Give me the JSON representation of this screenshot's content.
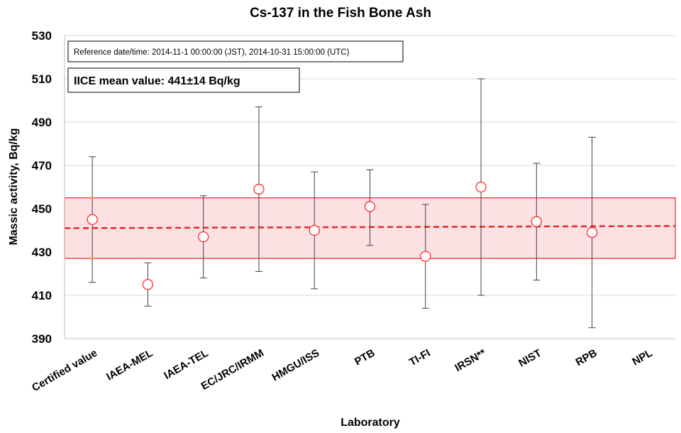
{
  "chart_data": {
    "type": "scatter",
    "title": "Cs-137 in the Fish Bone Ash",
    "xlabel": "Laboratory",
    "ylabel": "Massic activity, Bq/kg",
    "ylim": [
      390,
      530
    ],
    "yticks": [
      390,
      410,
      430,
      450,
      470,
      490,
      510,
      530
    ],
    "grid": "horizontal",
    "categories": [
      "Certified value",
      "IAEA-MEL",
      "IAEA-TEL",
      "EC/JRC/IRMM",
      "HMGU/ISS",
      "PTB",
      "TI-FI",
      "IRSN**",
      "NIST",
      "RPB",
      "NPL"
    ],
    "values": [
      445,
      415,
      437,
      459,
      440,
      451,
      428,
      460,
      444,
      439,
      null
    ],
    "err_low": [
      416,
      405,
      418,
      421,
      413,
      433,
      404,
      410,
      417,
      395,
      null
    ],
    "err_high": [
      474,
      425,
      456,
      497,
      467,
      468,
      452,
      510,
      471,
      483,
      null
    ],
    "certified_uncertainty_markers": [
      427,
      455
    ],
    "mean_line": {
      "start": 441,
      "end": 442
    },
    "uncertainty_band": [
      427,
      455
    ],
    "annotations": {
      "reference": "Reference date/time: 2014-11-1  00:00:00 (JST), 2014-10-31 15:00:00 (UTC)",
      "mean": "IICE mean value: 441±14 Bq/kg"
    },
    "colors": {
      "band_fill": "#fde0e2",
      "band_stroke": "#e8262e",
      "mean_line": "#e8262e",
      "marker": "#ff2a2a",
      "error_bar": "#404040",
      "certified_marker": "#f0a030",
      "grid": "#d9d9d9"
    }
  }
}
